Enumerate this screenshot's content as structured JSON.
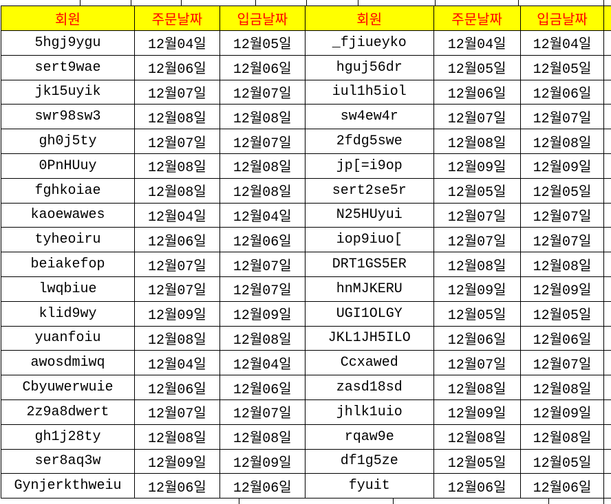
{
  "table": {
    "headers": [
      {
        "label": "회원"
      },
      {
        "label": "주문날짜"
      },
      {
        "label": "입금날짜"
      },
      {
        "label": "회원"
      },
      {
        "label": "주문날짜"
      },
      {
        "label": "입금날짜"
      }
    ],
    "rows": [
      [
        "5hgj9ygu",
        "12월04일",
        "12월05일",
        "_fjiueyko",
        "12월04일",
        "12월04일"
      ],
      [
        "sert9wae",
        "12월06일",
        "12월06일",
        "hguj56dr",
        "12월05일",
        "12월05일"
      ],
      [
        "jk15uyik",
        "12월07일",
        "12월07일",
        "iul1h5iol",
        "12월06일",
        "12월06일"
      ],
      [
        "swr98sw3",
        "12월08일",
        "12월08일",
        "sw4ew4r",
        "12월07일",
        "12월07일"
      ],
      [
        "gh0j5ty",
        "12월07일",
        "12월07일",
        "2fdg5swe",
        "12월08일",
        "12월08일"
      ],
      [
        "0PnHUuy",
        "12월08일",
        "12월08일",
        "jp[=i9op",
        "12월09일",
        "12월09일"
      ],
      [
        "fghkoiae",
        "12월08일",
        "12월08일",
        "sert2se5r",
        "12월05일",
        "12월05일"
      ],
      [
        "kaoewawes",
        "12월04일",
        "12월04일",
        "N25HUyui",
        "12월07일",
        "12월07일"
      ],
      [
        "tyheoiru",
        "12월06일",
        "12월06일",
        "iop9iuo[",
        "12월07일",
        "12월07일"
      ],
      [
        "beiakefop",
        "12월07일",
        "12월07일",
        "DRT1GS5ER",
        "12월08일",
        "12월08일"
      ],
      [
        "lwqbiue",
        "12월07일",
        "12월07일",
        "hnMJKERU",
        "12월09일",
        "12월09일"
      ],
      [
        "klid9wy",
        "12월09일",
        "12월09일",
        "UGI1OLGY",
        "12월05일",
        "12월05일"
      ],
      [
        "yuanfoiu",
        "12월08일",
        "12월08일",
        "JKL1JH5ILO",
        "12월06일",
        "12월06일"
      ],
      [
        "awosdmiwq",
        "12월04일",
        "12월04일",
        "Ccxawed",
        "12월07일",
        "12월07일"
      ],
      [
        "Cbyuwerwuie",
        "12월06일",
        "12월06일",
        "zasd18sd",
        "12월08일",
        "12월08일"
      ],
      [
        "2z9a8dwert",
        "12월07일",
        "12월07일",
        "jhlk1uio",
        "12월09일",
        "12월09일"
      ],
      [
        "gh1j28ty",
        "12월08일",
        "12월08일",
        "rqaw9e",
        "12월08일",
        "12월08일"
      ],
      [
        "ser8aq3w",
        "12월09일",
        "12월09일",
        "df1g5ze",
        "12월05일",
        "12월05일"
      ],
      [
        "Gynjerkthweiu",
        "12월06일",
        "12월06일",
        "fyuit",
        "12월06일",
        "12월06일"
      ]
    ],
    "colors": {
      "header_bg": "#FFFF00",
      "header_text": "#FF0000",
      "border": "#000000",
      "body_text": "#000000"
    }
  }
}
